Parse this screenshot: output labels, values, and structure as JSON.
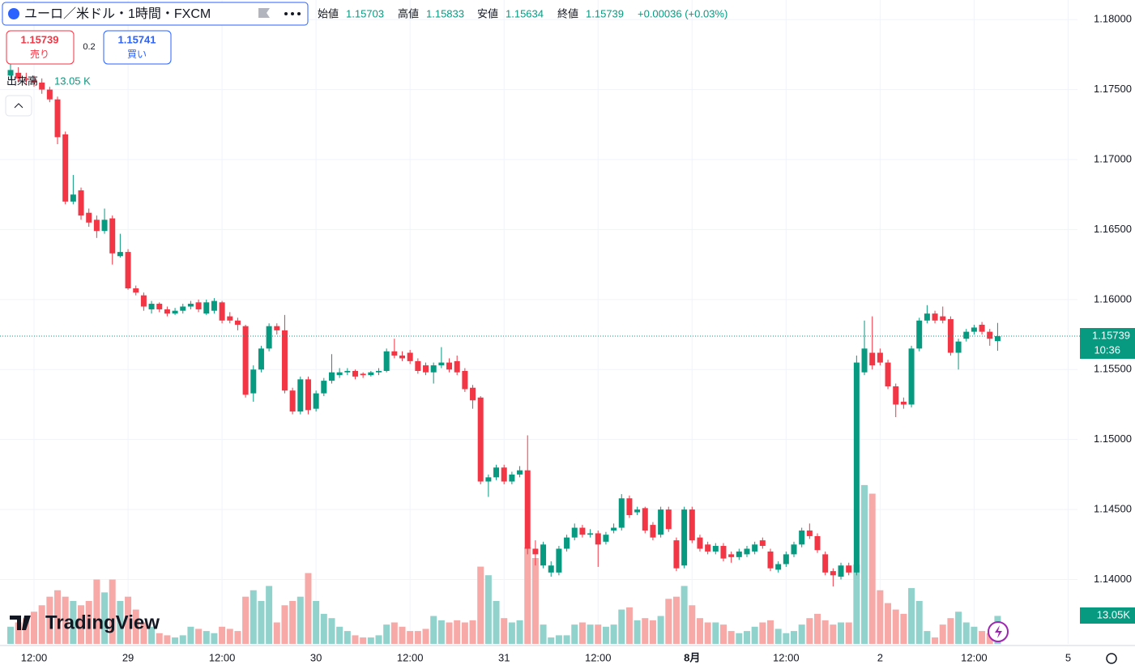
{
  "header": {
    "symbol": "ユーロ／米ドル・1時間・FXCM",
    "open_label": "始値",
    "high_label": "高値",
    "low_label": "安値",
    "close_label": "終値",
    "change": "+0.00036 (+0.03%)"
  },
  "trade": {
    "sell_label": "売り",
    "spread": 0.2,
    "buy_price": 1.15741,
    "buy_label": "買い"
  },
  "volume_label": "出来高",
  "price_badge_time": "10:36",
  "logo": "TradingView",
  "chart_data": {
    "type": "candlestick",
    "up_color": "#089981",
    "down_color": "#f23645",
    "up_volume_color": "#92d2cc",
    "down_volume_color": "#f7a9a7",
    "grid": true,
    "categories": [
      null,
      null,
      null,
      "12:00",
      null,
      null,
      null,
      null,
      null,
      null,
      null,
      null,
      null,
      null,
      null,
      "29",
      null,
      null,
      null,
      null,
      null,
      null,
      null,
      null,
      null,
      null,
      null,
      "12:00",
      null,
      null,
      null,
      null,
      null,
      null,
      null,
      null,
      null,
      null,
      null,
      "30",
      null,
      null,
      null,
      null,
      null,
      null,
      null,
      null,
      null,
      null,
      null,
      "12:00",
      null,
      null,
      null,
      null,
      null,
      null,
      null,
      null,
      null,
      null,
      null,
      "31",
      null,
      null,
      null,
      null,
      null,
      null,
      null,
      null,
      null,
      null,
      null,
      "12:00",
      null,
      null,
      null,
      null,
      null,
      null,
      null,
      null,
      null,
      null,
      null,
      "8月",
      null,
      null,
      null,
      null,
      null,
      null,
      null,
      null,
      null,
      null,
      null,
      "12:00",
      null,
      null,
      null,
      null,
      null,
      null,
      null,
      null,
      null,
      null,
      null,
      "2",
      null,
      null,
      null,
      null,
      null,
      null,
      null,
      null,
      null,
      null,
      null,
      "12:00",
      null,
      null,
      null,
      null,
      null,
      null,
      null,
      null,
      null,
      null,
      null,
      "5"
    ],
    "open": [
      1.176,
      1.1762,
      1.1758,
      1.1757,
      1.1755,
      1.175,
      1.1743,
      1.1718,
      1.167,
      1.1678,
      1.1662,
      1.1657,
      1.1649,
      1.1658,
      1.1631,
      1.1634,
      1.1608,
      1.1603,
      1.1593,
      1.1597,
      1.1593,
      1.159,
      1.1592,
      1.1595,
      1.1598,
      1.159,
      1.1592,
      1.1598,
      1.1588,
      1.1585,
      1.1581,
      1.1533,
      1.155,
      1.1565,
      1.1581,
      1.1578,
      1.1535,
      1.152,
      1.1543,
      1.1522,
      1.1533,
      1.1542,
      1.1546,
      1.1548,
      1.1549,
      1.1547,
      1.1546,
      1.1548,
      1.1549,
      1.1563,
      1.156,
      1.1562,
      1.1556,
      1.1553,
      1.1548,
      1.1553,
      1.1555,
      1.1556,
      1.1549,
      1.1537,
      1.153,
      1.147,
      1.1473,
      1.148,
      1.147,
      1.1475,
      1.1478,
      1.1422,
      1.141,
      1.1405,
      1.1405,
      1.1422,
      1.143,
      1.1437,
      1.1432,
      1.1433,
      1.1427,
      1.1435,
      1.1437,
      1.1458,
      1.1448,
      1.1451,
      1.1439,
      1.1432,
      1.145,
      1.1428,
      1.141,
      1.145,
      1.143,
      1.1425,
      1.142,
      1.1424,
      1.1418,
      1.1416,
      1.1418,
      1.142,
      1.1428,
      1.142,
      1.1407,
      1.1411,
      1.1418,
      1.1425,
      1.1435,
      1.1431,
      1.1418,
      1.1406,
      1.1402,
      1.141,
      1.1405,
      1.1548,
      1.1562,
      1.1562,
      1.1555,
      1.1538,
      1.1527,
      1.1525,
      1.1565,
      1.1585,
      1.159,
      1.1588,
      1.1586,
      1.1562,
      1.1572,
      1.1577,
      1.1582,
      1.1577,
      1.15703,
      null,
      null,
      null,
      null,
      null,
      null,
      null,
      null,
      null
    ],
    "high": [
      1.177,
      1.1766,
      1.1762,
      1.176,
      1.1758,
      1.1752,
      1.1745,
      1.172,
      1.1689,
      1.168,
      1.1665,
      1.166,
      1.1665,
      1.166,
      1.1647,
      1.1636,
      1.161,
      1.1605,
      1.1599,
      1.1598,
      1.1595,
      1.1594,
      1.1597,
      1.1599,
      1.16,
      1.16,
      1.1601,
      1.1599,
      1.1591,
      1.1587,
      1.1582,
      1.1553,
      1.1567,
      1.1583,
      1.1583,
      1.1589,
      1.1537,
      1.1545,
      1.1545,
      1.1535,
      1.1544,
      1.1561,
      1.1551,
      1.1551,
      1.155,
      1.1548,
      1.1549,
      1.1551,
      1.1565,
      1.1572,
      1.1563,
      1.1564,
      1.1558,
      1.1555,
      1.1555,
      1.1566,
      1.1558,
      1.156,
      1.1551,
      1.1539,
      1.1531,
      1.1475,
      1.1482,
      1.1482,
      1.1477,
      1.1481,
      1.1503,
      1.1428,
      1.1427,
      1.1413,
      1.1424,
      1.1432,
      1.144,
      1.1439,
      1.1436,
      1.1435,
      1.1434,
      1.144,
      1.1461,
      1.146,
      1.1452,
      1.1452,
      1.1441,
      1.1452,
      1.1452,
      1.143,
      1.1452,
      1.1452,
      1.1432,
      1.1427,
      1.1426,
      1.1426,
      1.142,
      1.1422,
      1.1424,
      1.1427,
      1.143,
      1.1422,
      1.1413,
      1.142,
      1.1427,
      1.1437,
      1.144,
      1.1433,
      1.142,
      1.1408,
      1.1412,
      1.1412,
      1.156,
      1.1585,
      1.1588,
      1.1565,
      1.1557,
      1.154,
      1.153,
      1.1567,
      1.1587,
      1.1596,
      1.1592,
      1.1595,
      1.1588,
      1.1572,
      1.1579,
      1.1582,
      1.1584,
      1.1579,
      1.15833,
      null,
      null,
      null,
      null,
      null,
      null,
      null,
      null,
      null
    ],
    "low": [
      1.1757,
      1.1755,
      1.1753,
      1.1752,
      1.1747,
      1.1741,
      1.1711,
      1.1668,
      1.1668,
      1.1657,
      1.1652,
      1.1644,
      1.1647,
      1.1625,
      1.163,
      1.1607,
      1.1603,
      1.1592,
      1.159,
      1.1591,
      1.1588,
      1.1589,
      1.159,
      1.1593,
      1.1591,
      1.1589,
      1.159,
      1.1583,
      1.1583,
      1.1578,
      1.153,
      1.1527,
      1.1548,
      1.1563,
      1.1575,
      1.1533,
      1.1518,
      1.1518,
      1.1518,
      1.152,
      1.1531,
      1.154,
      1.1544,
      1.1546,
      1.1543,
      1.1544,
      1.1545,
      1.1546,
      1.1548,
      1.1558,
      1.1556,
      1.1554,
      1.1547,
      1.1546,
      1.154,
      1.1551,
      1.1548,
      1.1546,
      1.1534,
      1.1522,
      1.1468,
      1.1459,
      1.1471,
      1.1468,
      1.1468,
      1.1473,
      1.1418,
      1.141,
      1.1408,
      1.1402,
      1.1403,
      1.142,
      1.1428,
      1.143,
      1.143,
      1.1409,
      1.1425,
      1.1433,
      1.1435,
      1.1444,
      1.1446,
      1.1433,
      1.1428,
      1.143,
      1.1434,
      1.1406,
      1.1408,
      1.1426,
      1.142,
      1.1418,
      1.1418,
      1.1413,
      1.1412,
      1.1414,
      1.1416,
      1.1418,
      1.1422,
      1.1406,
      1.1405,
      1.1409,
      1.1416,
      1.1423,
      1.1429,
      1.1419,
      1.1403,
      1.1395,
      1.14,
      1.1403,
      1.1403,
      1.1546,
      1.155,
      1.1553,
      1.1536,
      1.1516,
      1.1522,
      1.1523,
      1.1563,
      1.1583,
      1.1583,
      1.1583,
      1.156,
      1.155,
      1.157,
      1.1575,
      1.1575,
      1.1567,
      1.15634,
      null,
      null,
      null,
      null,
      null,
      null,
      null,
      null,
      null
    ],
    "close": [
      1.1764,
      1.1758,
      1.1757,
      1.1755,
      1.175,
      1.1743,
      1.1716,
      1.167,
      1.1675,
      1.166,
      1.1655,
      1.1649,
      1.1657,
      1.1633,
      1.1634,
      1.1608,
      1.1605,
      1.1595,
      1.1597,
      1.1593,
      1.159,
      1.1592,
      1.1595,
      1.1597,
      1.1593,
      1.1598,
      1.1599,
      1.1585,
      1.1585,
      1.1582,
      1.1532,
      1.155,
      1.1565,
      1.1581,
      1.1578,
      1.1535,
      1.152,
      1.1543,
      1.1521,
      1.1533,
      1.1542,
      1.1548,
      1.1548,
      1.1549,
      1.1545,
      1.1546,
      1.1548,
      1.1549,
      1.1563,
      1.156,
      1.1558,
      1.1556,
      1.1549,
      1.1548,
      1.1553,
      1.1555,
      1.155,
      1.1548,
      1.1536,
      1.1528,
      1.147,
      1.1473,
      1.148,
      1.147,
      1.1475,
      1.1478,
      1.1422,
      1.1418,
      1.1425,
      1.141,
      1.1422,
      1.143,
      1.1437,
      1.1432,
      1.1433,
      1.1425,
      1.1432,
      1.1437,
      1.1458,
      1.1446,
      1.145,
      1.1435,
      1.143,
      1.145,
      1.1436,
      1.1408,
      1.145,
      1.1428,
      1.1422,
      1.142,
      1.1424,
      1.1415,
      1.1416,
      1.142,
      1.1422,
      1.1425,
      1.1424,
      1.1408,
      1.1411,
      1.1418,
      1.1425,
      1.1435,
      1.1431,
      1.1421,
      1.1405,
      1.1403,
      1.141,
      1.1405,
      1.1555,
      1.1565,
      1.1553,
      1.1555,
      1.1538,
      1.1525,
      1.1525,
      1.1565,
      1.1585,
      1.159,
      1.1585,
      1.1585,
      1.1562,
      1.157,
      1.1577,
      1.158,
      1.1577,
      1.1572,
      1.15739,
      null,
      null,
      null,
      null,
      null,
      null,
      null,
      null,
      null
    ],
    "volume": [
      8,
      10,
      12,
      15,
      18,
      22,
      25,
      22,
      20,
      18,
      20,
      30,
      24,
      30,
      20,
      22,
      16,
      10,
      8,
      5,
      4,
      3,
      4,
      8,
      7,
      6,
      5,
      8,
      7,
      6,
      22,
      25,
      20,
      27,
      10,
      18,
      20,
      22,
      33,
      20,
      14,
      12,
      8,
      6,
      4,
      3,
      3,
      4,
      9,
      10,
      8,
      6,
      6,
      7,
      13,
      11,
      10,
      11,
      10,
      11,
      36,
      32,
      20,
      12,
      10,
      11,
      45,
      40,
      9,
      3,
      4,
      4,
      9,
      10,
      9,
      9,
      8,
      9,
      16,
      17,
      11,
      12,
      11,
      13,
      21,
      22,
      27,
      18,
      12,
      10,
      10,
      9,
      6,
      5,
      6,
      8,
      10,
      11,
      7,
      5,
      6,
      9,
      12,
      14,
      11,
      9,
      10,
      10,
      37,
      74,
      70,
      25,
      19,
      16,
      14,
      26,
      20,
      6,
      3,
      9,
      12,
      15,
      10,
      8,
      6,
      5,
      13.05,
      null,
      null,
      null,
      null,
      null,
      null,
      null,
      null,
      null
    ],
    "volume_value_label": "13.05 K",
    "volume_badge_label": "13.05K",
    "volume_ylim": [
      0,
      300
    ],
    "ylim": [
      1.1354,
      1.1814
    ],
    "yticks": [
      {
        "value": 1.18,
        "label": "1.18000"
      },
      {
        "value": 1.175,
        "label": "1.17500"
      },
      {
        "value": 1.17,
        "label": "1.17000"
      },
      {
        "value": 1.165,
        "label": "1.16500"
      },
      {
        "value": 1.16,
        "label": "1.16000"
      },
      {
        "value": 1.155,
        "label": "1.15500"
      },
      {
        "value": 1.15,
        "label": "1.15000"
      },
      {
        "value": 1.145,
        "label": "1.14500"
      },
      {
        "value": 1.14,
        "label": "1.14000"
      }
    ]
  }
}
